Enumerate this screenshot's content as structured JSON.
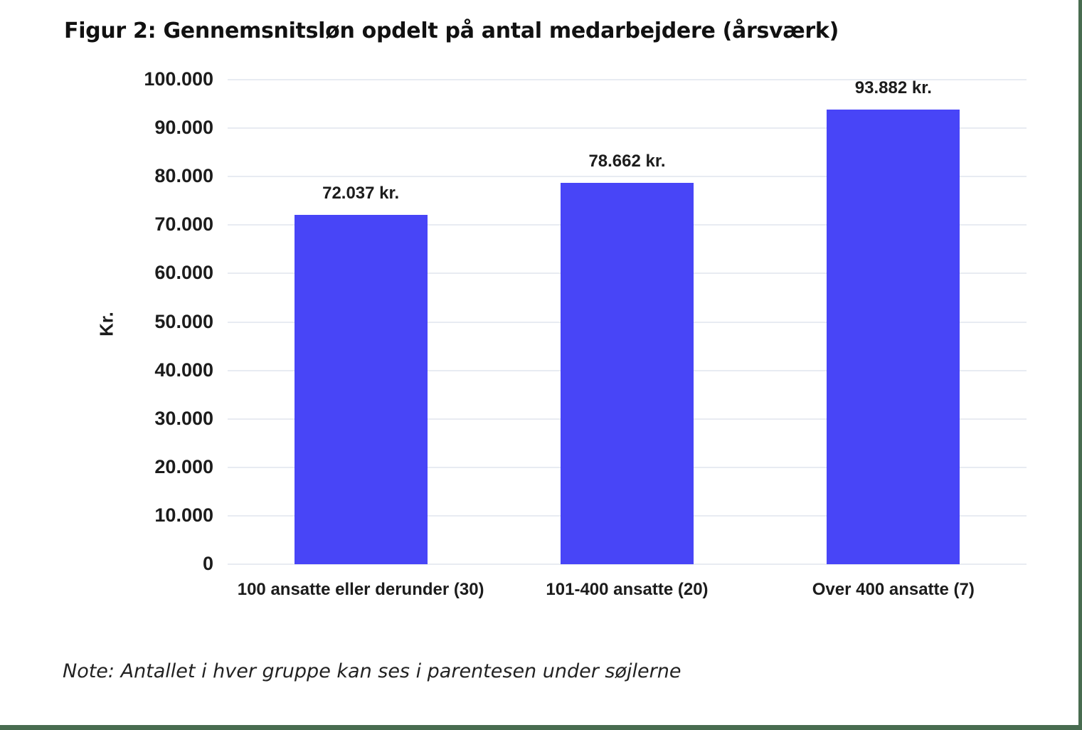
{
  "title": "Figur 2: Gennemsnitsløn opdelt på antal medarbejdere (årsværk)",
  "note": "Note: Antallet i hver gruppe kan ses i parentesen under søjlerne",
  "frame": {
    "border_color": "#486c50"
  },
  "chart_data": {
    "type": "bar",
    "title": "Figur 2: Gennemsnitsløn opdelt på antal medarbejdere (årsværk)",
    "categories": [
      "100 ansatte eller derunder (30)",
      "101-400 ansatte (20)",
      "Over 400 ansatte (7)"
    ],
    "values": [
      72037,
      78662,
      93882
    ],
    "bar_labels": [
      "72.037 kr.",
      "78.662 kr.",
      "93.882 kr."
    ],
    "xlabel": "",
    "ylabel": "Kr.",
    "ylim": [
      0,
      100000
    ],
    "ytick_step": 10000,
    "ytick_labels": [
      "0",
      "10.000",
      "20.000",
      "30.000",
      "40.000",
      "50.000",
      "60.000",
      "70.000",
      "80.000",
      "90.000",
      "100.000"
    ],
    "grid": true,
    "legend": "none",
    "bar_color": "#4845f7",
    "gridline_color": "#e8ebf2",
    "label_color": "#1c1c1c"
  }
}
